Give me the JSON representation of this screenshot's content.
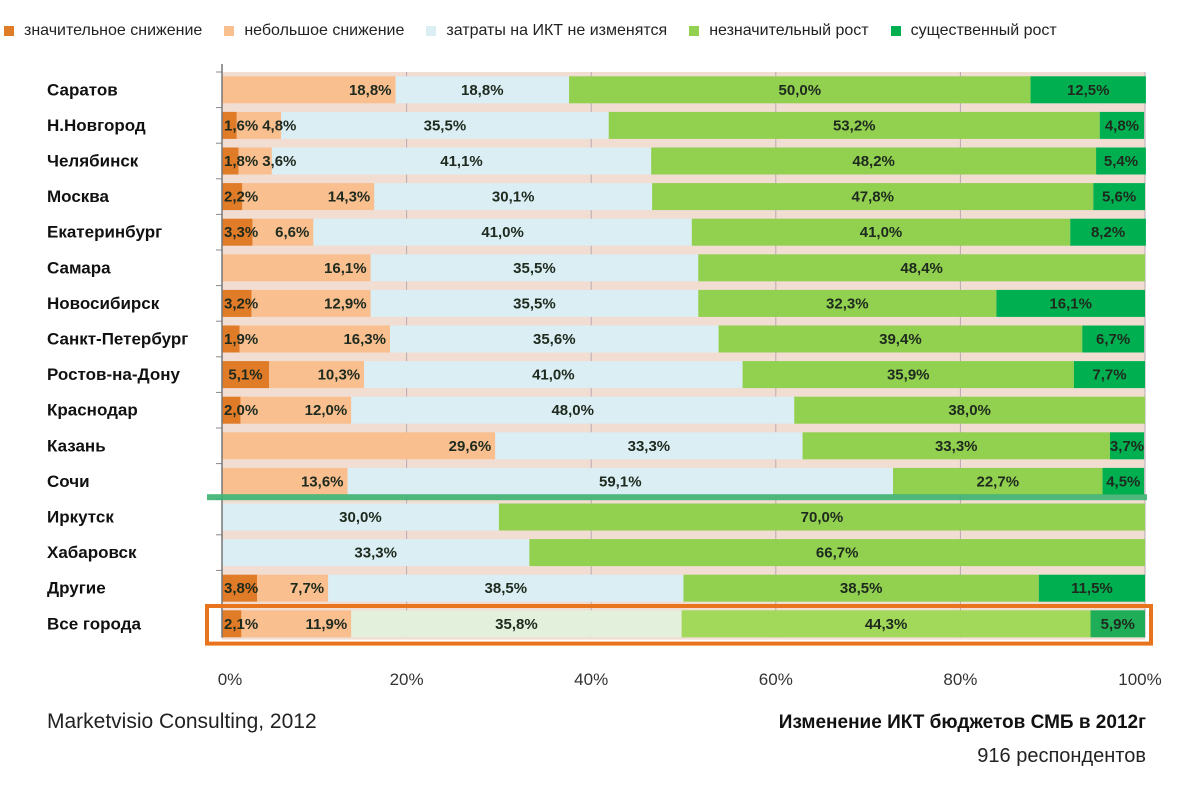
{
  "chart_data": {
    "type": "bar",
    "orientation": "horizontal",
    "stacked": "percent",
    "title": "Изменение ИКТ бюджетов СМБ в 2012г",
    "subtitle": "916 респондентов",
    "source": "Marketvisio Consulting, 2012",
    "xlabel": "",
    "ylabel": "",
    "xlim": [
      0,
      100
    ],
    "x_ticks": [
      "0%",
      "20%",
      "40%",
      "60%",
      "80%",
      "100%"
    ],
    "legend_position": "top",
    "categories": [
      "Саратов",
      "Н.Новгород",
      "Челябинск",
      "Москва",
      "Екатеринбург",
      "Самара",
      "Новосибирск",
      "Санкт-Петербург",
      "Ростов-на-Дону",
      "Краснодар",
      "Казань",
      "Сочи",
      "Иркутск",
      "Хабаровск",
      "Другие",
      "Все города"
    ],
    "series": [
      {
        "name": "значительное снижение",
        "color": "#e07b28",
        "values": [
          0,
          1.6,
          1.8,
          2.2,
          3.3,
          0,
          3.2,
          1.9,
          5.1,
          2.0,
          0,
          0,
          0,
          0,
          3.8,
          2.1
        ],
        "labels": [
          "",
          "1,6%",
          "1,8%",
          "2,2%",
          "3,3%",
          "",
          "3,2%",
          "1,9%",
          "5,1%",
          "2,0%",
          "",
          "",
          "",
          "",
          "3,8%",
          "2,1%"
        ]
      },
      {
        "name": "небольшое снижение",
        "color": "#f9bf8f",
        "values": [
          18.8,
          4.8,
          3.6,
          14.3,
          6.6,
          16.1,
          12.9,
          16.3,
          10.3,
          12.0,
          29.6,
          13.6,
          0,
          0,
          7.7,
          11.9
        ],
        "labels": [
          "18,8%",
          "4,8%",
          "3,6%",
          "14,3%",
          "6,6%",
          "16,1%",
          "12,9%",
          "16,3%",
          "10,3%",
          "12,0%",
          "29,6%",
          "13,6%",
          "",
          "",
          "7,7%",
          "11,9%"
        ]
      },
      {
        "name": "затраты на ИКТ не изменятся",
        "color": "#dbeef4",
        "values": [
          18.8,
          35.5,
          41.1,
          30.1,
          41.0,
          35.5,
          35.5,
          35.6,
          41.0,
          48.0,
          33.3,
          59.1,
          30.0,
          33.3,
          38.5,
          35.8
        ],
        "labels": [
          "18,8%",
          "35,5%",
          "41,1%",
          "30,1%",
          "41,0%",
          "35,5%",
          "35,5%",
          "35,6%",
          "41,0%",
          "48,0%",
          "33,3%",
          "59,1%",
          "30,0%",
          "33,3%",
          "38,5%",
          "35,8%"
        ]
      },
      {
        "name": "незначительный рост",
        "color": "#92d050",
        "values": [
          50.0,
          53.2,
          48.2,
          47.8,
          41.0,
          48.4,
          32.3,
          39.4,
          35.9,
          38.0,
          33.3,
          22.7,
          70.0,
          66.7,
          38.5,
          44.3
        ],
        "labels": [
          "50,0%",
          "53,2%",
          "48,2%",
          "47,8%",
          "41,0%",
          "48,4%",
          "32,3%",
          "39,4%",
          "35,9%",
          "38,0%",
          "33,3%",
          "22,7%",
          "70,0%",
          "66,7%",
          "38,5%",
          "44,3%"
        ]
      },
      {
        "name": "существенный рост",
        "color": "#00b050",
        "values": [
          12.5,
          4.8,
          5.4,
          5.6,
          8.2,
          0,
          16.1,
          6.7,
          7.7,
          0,
          3.7,
          4.5,
          0,
          0,
          11.5,
          5.9
        ],
        "labels": [
          "12,5%",
          "4,8%",
          "5,4%",
          "5,6%",
          "8,2%",
          "",
          "16,1%",
          "6,7%",
          "7,7%",
          "",
          "3,7%",
          "4,5%",
          "",
          "",
          "11,5%",
          "5,9%"
        ]
      }
    ],
    "annotations": [
      "green separator line between Сочи and Иркутск",
      "orange box highlighting Все города"
    ],
    "highlight_category": "Все города",
    "colors": {
      "separator": "#3cb371",
      "highlight_box": "#e8741e",
      "row_gap": "#f1ddd2"
    }
  }
}
